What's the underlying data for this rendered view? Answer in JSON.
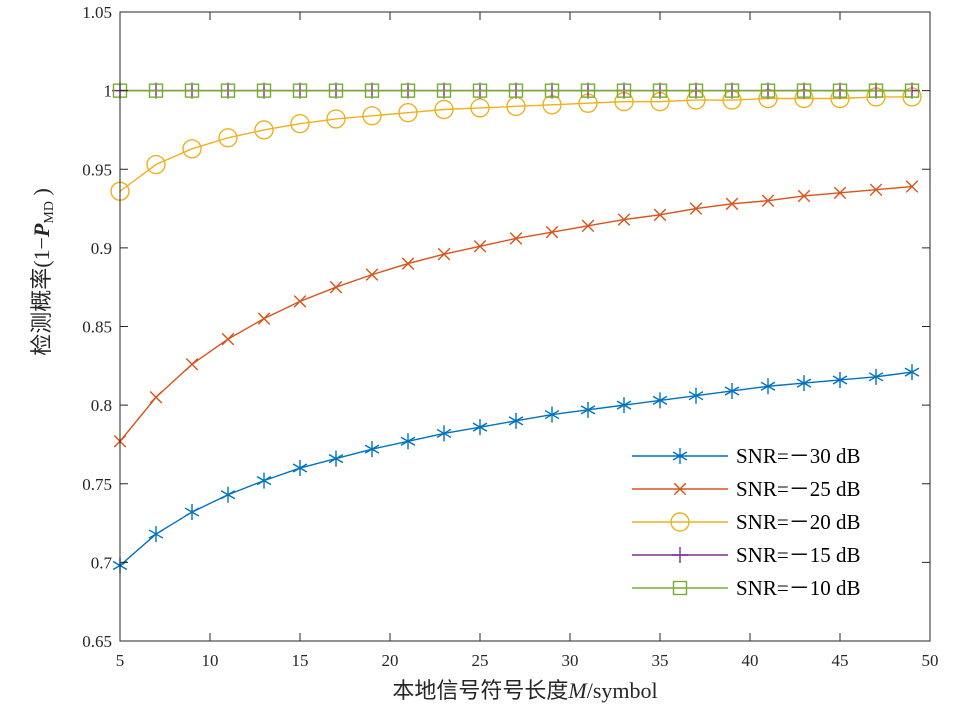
{
  "chart_data": {
    "type": "line",
    "xlabel": "本地信号符号长度M/symbol",
    "ylabel": "检测概率(1−P_MD )",
    "xlim": [
      5,
      50
    ],
    "ylim": [
      0.65,
      1.05
    ],
    "x_ticks": [
      "5",
      "10",
      "15",
      "20",
      "25",
      "30",
      "35",
      "40",
      "45",
      "50"
    ],
    "y_ticks": [
      "0.65",
      "0.7",
      "0.75",
      "0.8",
      "0.85",
      "0.9",
      "0.95",
      "1",
      "1.05"
    ],
    "grid": false,
    "legend_position": "bottom-right",
    "x": [
      5,
      7,
      9,
      11,
      13,
      15,
      17,
      19,
      21,
      23,
      25,
      27,
      29,
      31,
      33,
      35,
      37,
      39,
      41,
      43,
      45,
      47,
      49
    ],
    "series": [
      {
        "name": "SNR=－30 dB",
        "color": "#0072BD",
        "marker": "asterisk",
        "values": [
          0.698,
          0.718,
          0.732,
          0.743,
          0.752,
          0.76,
          0.766,
          0.772,
          0.777,
          0.782,
          0.786,
          0.79,
          0.794,
          0.797,
          0.8,
          0.803,
          0.806,
          0.809,
          0.812,
          0.814,
          0.816,
          0.818,
          0.821
        ]
      },
      {
        "name": "SNR=－25 dB",
        "color": "#D95319",
        "marker": "x",
        "values": [
          0.777,
          0.805,
          0.826,
          0.842,
          0.855,
          0.866,
          0.875,
          0.883,
          0.89,
          0.896,
          0.901,
          0.906,
          0.91,
          0.914,
          0.918,
          0.921,
          0.925,
          0.928,
          0.93,
          0.933,
          0.935,
          0.937,
          0.939
        ]
      },
      {
        "name": "SNR=－20 dB",
        "color": "#EDB120",
        "marker": "circle",
        "values": [
          0.936,
          0.953,
          0.963,
          0.97,
          0.975,
          0.979,
          0.982,
          0.984,
          0.986,
          0.988,
          0.989,
          0.99,
          0.991,
          0.992,
          0.993,
          0.993,
          0.994,
          0.994,
          0.995,
          0.995,
          0.995,
          0.996,
          0.996
        ]
      },
      {
        "name": "SNR=－15 dB",
        "color": "#7E2F8E",
        "marker": "plus",
        "values": [
          1,
          1,
          1,
          1,
          1,
          1,
          1,
          1,
          1,
          1,
          1,
          1,
          1,
          1,
          1,
          1,
          1,
          1,
          1,
          1,
          1,
          1,
          1
        ]
      },
      {
        "name": "SNR=－10 dB",
        "color": "#77AC30",
        "marker": "square",
        "values": [
          1,
          1,
          1,
          1,
          1,
          1,
          1,
          1,
          1,
          1,
          1,
          1,
          1,
          1,
          1,
          1,
          1,
          1,
          1,
          1,
          1,
          1,
          1
        ]
      }
    ]
  }
}
